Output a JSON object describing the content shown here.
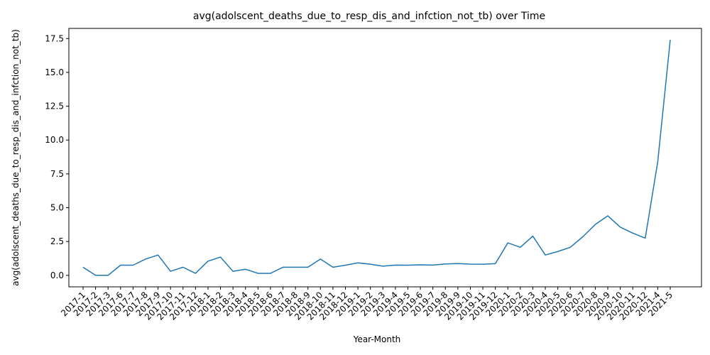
{
  "chart_data": {
    "type": "line",
    "title": "avg(adolscent_deaths_due_to_resp_dis_and_infction_not_tb) over Time",
    "xlabel": "Year-Month",
    "ylabel": "avg(adolscent_deaths_due_to_resp_dis_and_infction_not_tb)",
    "ylim": [
      -0.85,
      18.25
    ],
    "yticks": [
      "0.0",
      "2.5",
      "5.0",
      "7.5",
      "10.0",
      "12.5",
      "15.0",
      "17.5"
    ],
    "grid": false,
    "line_color": "#1f77b4",
    "categories": [
      "2017-1",
      "2017-2",
      "2017-3",
      "2017-6",
      "2017-7",
      "2017-8",
      "2017-9",
      "2017-10",
      "2017-11",
      "2017-12",
      "2018-1",
      "2018-2",
      "2018-3",
      "2018-4",
      "2018-5",
      "2018-6",
      "2018-7",
      "2018-8",
      "2018-9",
      "2018-10",
      "2018-11",
      "2018-12",
      "2019-1",
      "2019-2",
      "2019-3",
      "2019-4",
      "2019-5",
      "2019-6",
      "2019-7",
      "2019-8",
      "2019-9",
      "2019-10",
      "2019-11",
      "2019-12",
      "2020-1",
      "2020-2",
      "2020-3",
      "2020-4",
      "2020-5",
      "2020-6",
      "2020-7",
      "2020-8",
      "2020-9",
      "2020-10",
      "2020-11",
      "2020-12",
      "2021-4",
      "2021-5"
    ],
    "values": [
      0.6,
      0.0,
      0.0,
      0.75,
      0.75,
      1.2,
      1.5,
      0.3,
      0.6,
      0.15,
      1.05,
      1.35,
      0.3,
      0.45,
      0.15,
      0.15,
      0.6,
      0.6,
      0.6,
      1.2,
      0.6,
      0.75,
      0.92,
      0.82,
      0.68,
      0.76,
      0.75,
      0.78,
      0.76,
      0.84,
      0.87,
      0.83,
      0.82,
      0.86,
      2.4,
      2.07,
      2.9,
      1.5,
      1.76,
      2.07,
      2.85,
      3.76,
      4.4,
      3.56,
      3.12,
      2.75,
      8.4,
      17.4
    ]
  }
}
